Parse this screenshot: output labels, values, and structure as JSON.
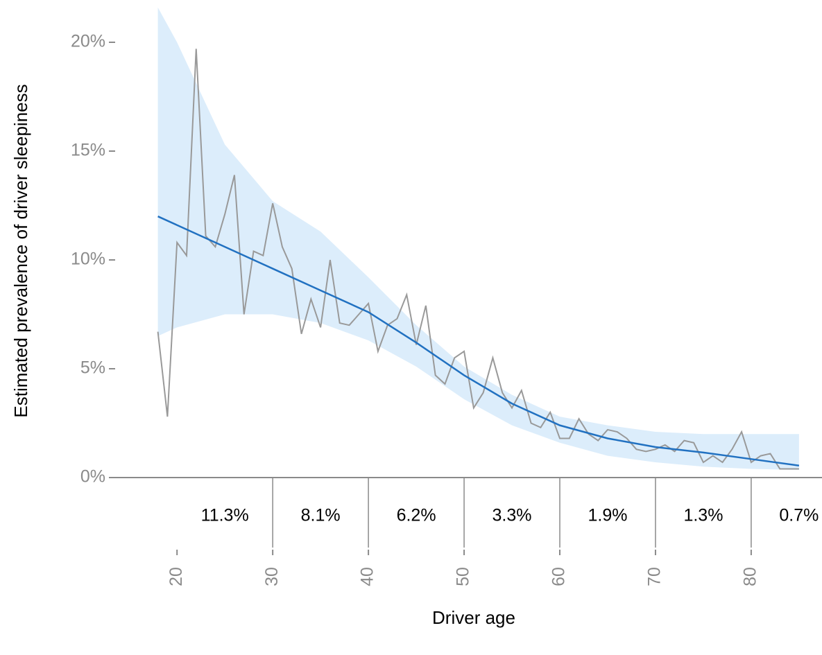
{
  "chart_data": {
    "type": "line",
    "x_label": "Driver age",
    "y_label": "Estimated prevalence of driver sleepiness",
    "xlim": [
      13.1,
      87.4
    ],
    "ylim": [
      0,
      22
    ],
    "xticks": [
      20,
      30,
      40,
      50,
      60,
      70,
      80
    ],
    "yticks": [
      {
        "value": 0,
        "label": "0%"
      },
      {
        "value": 5,
        "label": "5%"
      },
      {
        "value": 10,
        "label": "10%"
      },
      {
        "value": 15,
        "label": "15%"
      },
      {
        "value": 20,
        "label": "20%"
      }
    ],
    "x": [
      18,
      19,
      20,
      21,
      22,
      23,
      24,
      25,
      26,
      27,
      28,
      29,
      30,
      31,
      32,
      33,
      34,
      35,
      36,
      37,
      38,
      39,
      40,
      41,
      42,
      43,
      44,
      45,
      46,
      47,
      48,
      49,
      50,
      51,
      52,
      53,
      54,
      55,
      56,
      57,
      58,
      59,
      60,
      61,
      62,
      63,
      64,
      65,
      66,
      67,
      68,
      69,
      70,
      71,
      72,
      73,
      74,
      75,
      76,
      77,
      78,
      79,
      80,
      81,
      82,
      83,
      84,
      85
    ],
    "series": [
      {
        "color": "#999999",
        "values": [
          6.7,
          2.8,
          10.8,
          10.2,
          19.7,
          11.1,
          10.6,
          12.1,
          13.9,
          7.5,
          10.4,
          10.2,
          12.6,
          10.6,
          9.6,
          6.6,
          8.2,
          6.9,
          10.0,
          7.1,
          7.0,
          7.5,
          8.0,
          5.8,
          7.0,
          7.3,
          8.4,
          6.1,
          7.9,
          4.7,
          4.3,
          5.5,
          5.8,
          3.2,
          3.9,
          5.5,
          3.9,
          3.2,
          4.0,
          2.5,
          2.3,
          3.0,
          1.8,
          1.8,
          2.7,
          2.0,
          1.7,
          2.2,
          2.1,
          1.8,
          1.3,
          1.2,
          1.3,
          1.5,
          1.2,
          1.7,
          1.6,
          0.7,
          1.0,
          0.7,
          1.3,
          2.1,
          0.7,
          1.0,
          1.1,
          0.4,
          0.4,
          0.4
        ]
      }
    ],
    "fit": {
      "color": "#2171c1",
      "band_color": "#dcedfb",
      "x": [
        18,
        20,
        25,
        30,
        35,
        40,
        45,
        50,
        55,
        60,
        65,
        70,
        75,
        80,
        85
      ],
      "values": [
        12.0,
        11.6,
        10.6,
        9.6,
        8.6,
        7.6,
        6.2,
        4.7,
        3.4,
        2.4,
        1.8,
        1.4,
        1.15,
        0.85,
        0.55
      ],
      "lower": [
        6.5,
        6.9,
        7.5,
        7.5,
        7.1,
        6.3,
        5.1,
        3.6,
        2.4,
        1.6,
        1.0,
        0.7,
        0.5,
        0.4,
        0.35
      ],
      "upper": [
        21.6,
        20.0,
        15.3,
        12.7,
        11.3,
        9.2,
        7.0,
        5.1,
        3.8,
        2.8,
        2.4,
        2.1,
        2.0,
        2.0,
        2.0
      ]
    },
    "groups": {
      "edges": [
        20,
        30,
        40,
        50,
        60,
        70,
        80,
        90
      ],
      "values": [
        11.3,
        8.1,
        6.2,
        3.3,
        1.9,
        1.3,
        0.7
      ],
      "value_labels": [
        "11.3%",
        "8.1%",
        "6.2%",
        "3.3%",
        "1.9%",
        "1.3%",
        "0.7%"
      ]
    }
  }
}
